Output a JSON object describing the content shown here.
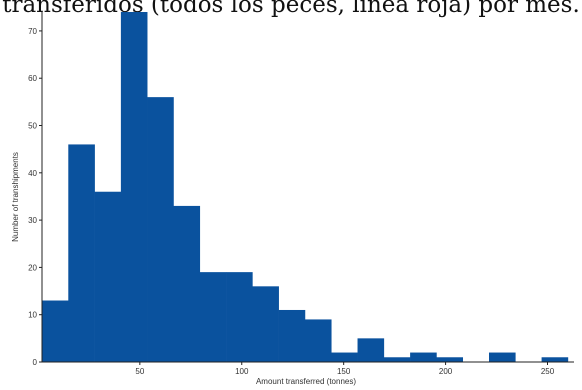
{
  "caption": "transferidos (todos los peces, línea roja) por mes.",
  "colors": {
    "bar": "#0a529e",
    "axis": "#222222"
  },
  "chart_data": {
    "type": "bar",
    "title": "",
    "xlabel": "Amount transferred (tonnes)",
    "ylabel": "Number of transhipments",
    "xlim": [
      2,
      263
    ],
    "ylim": [
      0,
      74
    ],
    "xticks": [
      50,
      100,
      150,
      200,
      250
    ],
    "yticks": [
      0,
      10,
      20,
      30,
      40,
      50,
      60,
      70
    ],
    "bin_width": 12.9,
    "bins": [
      {
        "start": 2.0,
        "value": 13
      },
      {
        "start": 14.9,
        "value": 46
      },
      {
        "start": 27.8,
        "value": 36
      },
      {
        "start": 40.7,
        "value": 74
      },
      {
        "start": 53.6,
        "value": 56
      },
      {
        "start": 66.5,
        "value": 33
      },
      {
        "start": 79.4,
        "value": 19
      },
      {
        "start": 92.3,
        "value": 19
      },
      {
        "start": 105.2,
        "value": 16
      },
      {
        "start": 118.1,
        "value": 11
      },
      {
        "start": 131.0,
        "value": 9
      },
      {
        "start": 143.9,
        "value": 2
      },
      {
        "start": 156.8,
        "value": 5
      },
      {
        "start": 169.7,
        "value": 1
      },
      {
        "start": 182.6,
        "value": 2
      },
      {
        "start": 195.5,
        "value": 1
      },
      {
        "start": 208.4,
        "value": 0
      },
      {
        "start": 221.3,
        "value": 2
      },
      {
        "start": 234.2,
        "value": 0
      },
      {
        "start": 247.1,
        "value": 1
      }
    ],
    "grid": false,
    "legend": "none"
  }
}
